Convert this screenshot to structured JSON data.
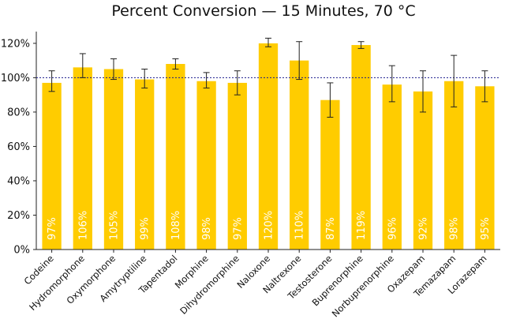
{
  "chart_data": {
    "type": "bar",
    "title": "Percent Conversion — 15 Minutes, 70 °C",
    "xlabel": "",
    "ylabel": "",
    "ylim": [
      0,
      125
    ],
    "yticks": [
      0,
      20,
      40,
      60,
      80,
      100,
      120
    ],
    "ytick_labels": [
      "0%",
      "20%",
      "40%",
      "60%",
      "80%",
      "100%",
      "120%"
    ],
    "reference_line": 100,
    "grid": false,
    "bar_color": "#FFCC00",
    "reference_line_color": "#1A1A8C",
    "categories": [
      "Codeine",
      "Hydromorphone",
      "Oxymorphone",
      "Amytryptiline",
      "Tapentadol",
      "Morphine",
      "Dihydromorphine",
      "Naloxone",
      "Naltrexone",
      "Testosterone",
      "Buprenorphine",
      "Norbuprenorphine",
      "Oxazepam",
      "Temazapam",
      "Lorazepam"
    ],
    "values": [
      97,
      106,
      105,
      99,
      108,
      98,
      97,
      120,
      110,
      87,
      119,
      96,
      92,
      98,
      95
    ],
    "data_labels": [
      "97%",
      "106%",
      "105%",
      "99%",
      "108%",
      "98%",
      "97%",
      "120%",
      "110%",
      "87%",
      "119%",
      "96%",
      "92%",
      "98%",
      "95%"
    ],
    "error_low": [
      92,
      100,
      99,
      94,
      105,
      94,
      90,
      118,
      99,
      77,
      117,
      86,
      80,
      83,
      86
    ],
    "error_high": [
      104,
      114,
      111,
      105,
      111,
      103,
      104,
      123,
      121,
      97,
      121,
      107,
      104,
      113,
      104
    ]
  }
}
